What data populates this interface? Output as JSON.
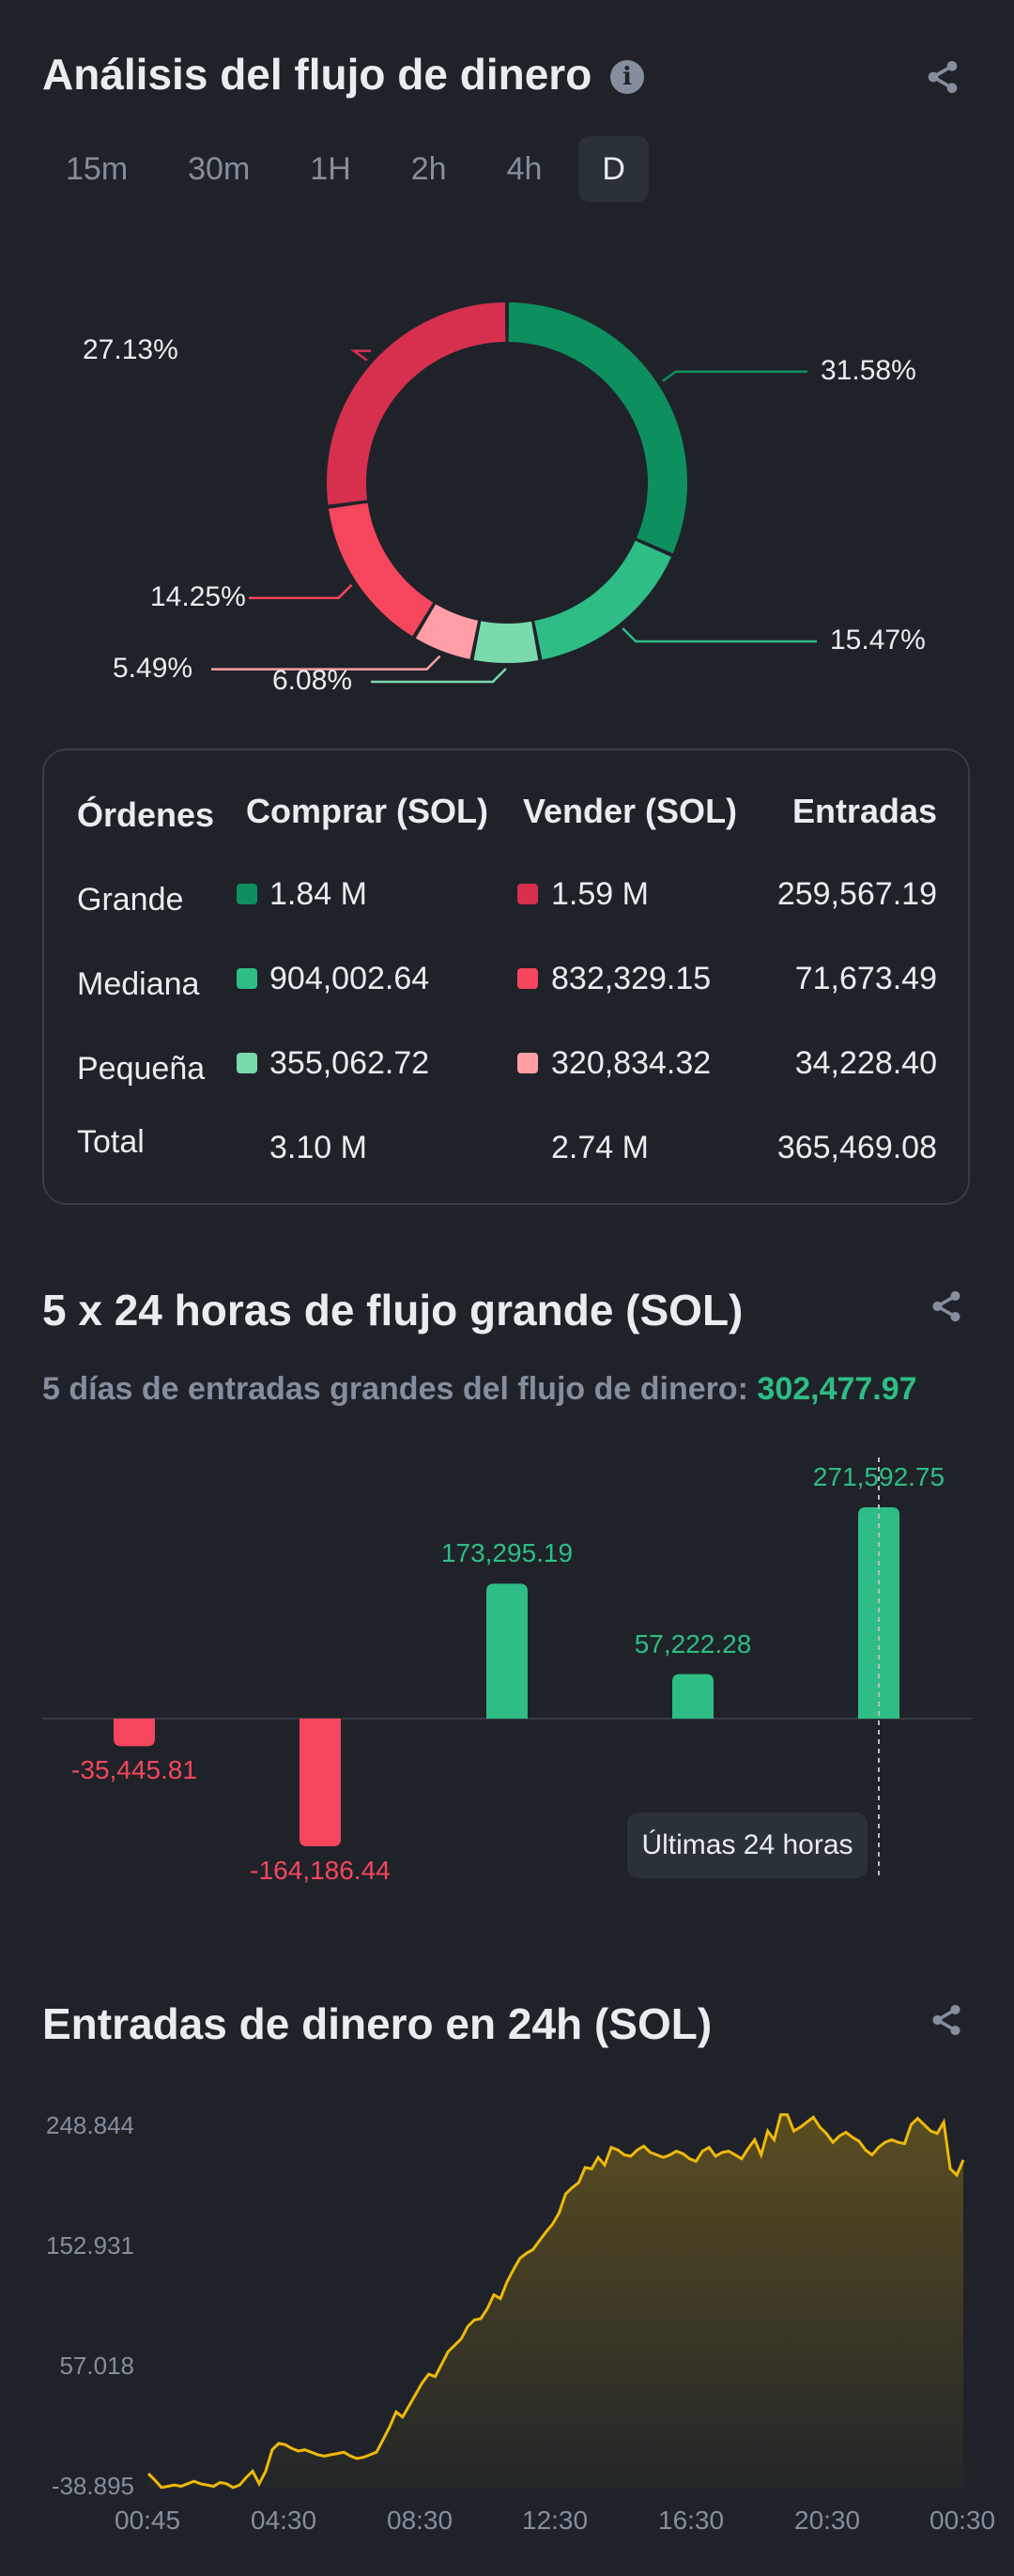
{
  "money_flow": {
    "title": "Análisis del flujo de dinero",
    "tabs": [
      "15m",
      "30m",
      "1H",
      "2h",
      "4h",
      "D"
    ],
    "active_tab": "D",
    "donut": {
      "segments": [
        {
          "label": "31.58%",
          "value": 31.58,
          "color": "#0e8f5e"
        },
        {
          "label": "15.47%",
          "value": 15.47,
          "color": "#2ebd85"
        },
        {
          "label": "6.08%",
          "value": 6.08,
          "color": "#7ad9ad"
        },
        {
          "label": "5.49%",
          "value": 5.49,
          "color": "#ff9ea6"
        },
        {
          "label": "14.25%",
          "value": 14.25,
          "color": "#f6465d"
        },
        {
          "label": "27.13%",
          "value": 27.13,
          "color": "#d6304e"
        }
      ]
    },
    "table": {
      "headers": [
        "Órdenes",
        "Comprar (SOL)",
        "Vender (SOL)",
        "Entradas"
      ],
      "rows": [
        {
          "name": "Grande",
          "buy": "1.84 M",
          "sell": "1.59 M",
          "inflow": "259,567.19",
          "buy_color": "#0e8f5e",
          "sell_color": "#d6304e"
        },
        {
          "name": "Mediana",
          "buy": "904,002.64",
          "sell": "832,329.15",
          "inflow": "71,673.49",
          "buy_color": "#2ebd85",
          "sell_color": "#f6465d"
        },
        {
          "name": "Pequeña",
          "buy": "355,062.72",
          "sell": "320,834.32",
          "inflow": "34,228.40",
          "buy_color": "#7ad9ad",
          "sell_color": "#ff9ea6"
        }
      ],
      "total": {
        "name": "Total",
        "buy": "3.10 M",
        "sell": "2.74 M",
        "inflow": "365,469.08"
      }
    }
  },
  "large_flow": {
    "title": "5 x 24 horas de flujo grande (SOL)",
    "subtitle_prefix": "5 días de entradas grandes del flujo de dinero: ",
    "subtitle_value": "302,477.97",
    "tooltip": "Últimas 24 horas",
    "colors": {
      "positive": "#2ebd85",
      "negative": "#f6465d"
    }
  },
  "inflow_24h": {
    "title": "Entradas de dinero en 24h (SOL)",
    "line_color": "#f0b90b"
  },
  "chart_data": [
    {
      "type": "pie",
      "labels": [
        "31.58%",
        "15.47%",
        "6.08%",
        "5.49%",
        "14.25%",
        "27.13%"
      ],
      "values": [
        31.58,
        15.47,
        6.08,
        5.49,
        14.25,
        27.13
      ]
    },
    {
      "type": "bar",
      "categories": [
        "",
        "",
        "",
        "",
        ""
      ],
      "values": [
        -35445.81,
        -164186.44,
        173295.19,
        57222.28,
        271592.75
      ],
      "labels": [
        "-35,445.81",
        "-164,186.44",
        "173,295.19",
        "57,222.28",
        "271,592.75"
      ]
    },
    {
      "type": "area",
      "x_ticks": [
        "00:45",
        "04:30",
        "08:30",
        "12:30",
        "16:30",
        "20:30",
        "00:30"
      ],
      "y_ticks": [
        "248.844",
        "152.931",
        "57.018",
        "-38.895"
      ],
      "ylim": [
        -38.895,
        248.844
      ],
      "values": [
        -27,
        -32,
        -38,
        -37,
        -36,
        -37,
        -35,
        -33,
        -35,
        -36,
        -37,
        -34,
        -35,
        -38,
        -36,
        -30,
        -25,
        -35,
        -25,
        -8,
        -3,
        -4,
        -7,
        -9,
        -8,
        -10,
        -12,
        -13,
        -12,
        -11,
        -10,
        -13,
        -15,
        -14,
        -12,
        -10,
        0,
        10,
        22,
        18,
        27,
        36,
        45,
        52,
        50,
        60,
        70,
        75,
        80,
        90,
        95,
        96,
        104,
        115,
        112,
        125,
        135,
        144,
        148,
        151,
        158,
        165,
        171,
        180,
        195,
        200,
        204,
        216,
        215,
        224,
        218,
        232,
        230,
        226,
        225,
        230,
        233,
        228,
        226,
        224,
        226,
        229,
        227,
        223,
        221,
        229,
        232,
        225,
        228,
        229,
        226,
        223,
        231,
        238,
        226,
        245,
        238,
        258,
        258,
        245,
        248,
        252,
        256,
        248,
        243,
        236,
        241,
        244,
        240,
        237,
        230,
        226,
        232,
        236,
        238,
        236,
        235,
        250,
        255,
        250,
        245,
        243,
        252,
        215,
        210,
        222
      ]
    }
  ]
}
